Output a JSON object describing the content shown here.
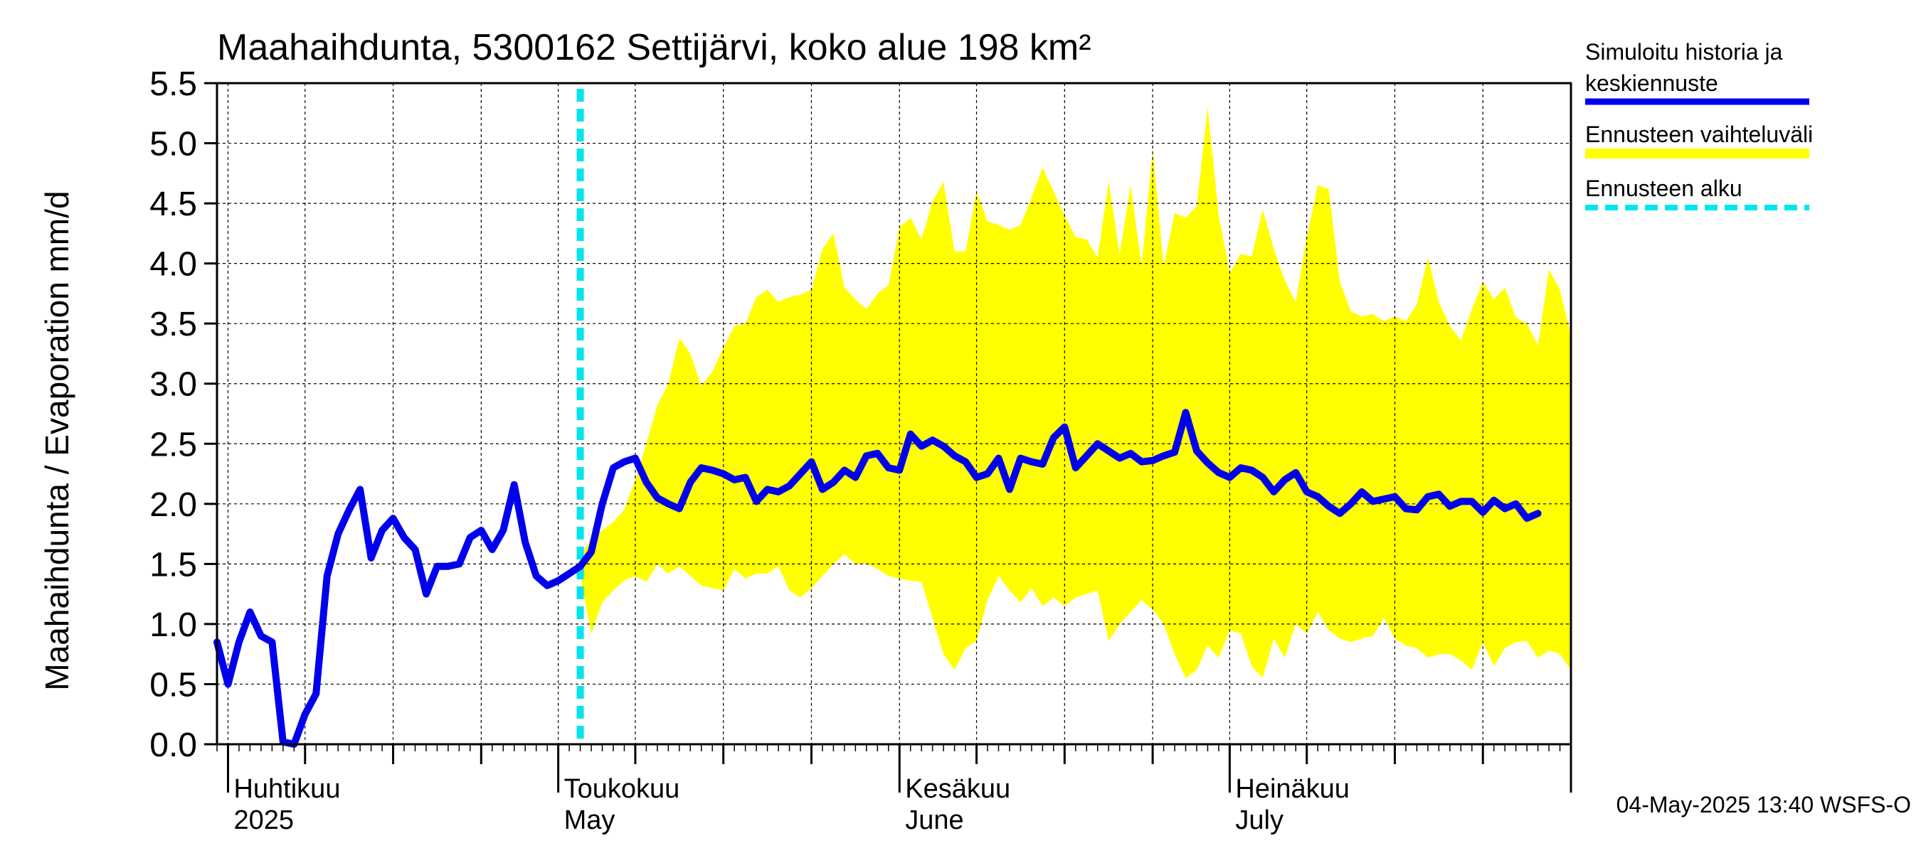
{
  "chart_data": {
    "type": "line",
    "title": "Maahaihdunta, 5300162 Settijärvi, koko alue 198 km²",
    "ylabel": "Maahaihdunta / Evaporation   mm/d",
    "ylim": [
      0,
      5.5
    ],
    "yticks": [
      "0.0",
      "0.5",
      "1.0",
      "1.5",
      "2.0",
      "2.5",
      "3.0",
      "3.5",
      "4.0",
      "4.5",
      "5.0",
      "5.5"
    ],
    "x_start": "2025-03-31",
    "x_end": "2025-08-01",
    "grid": true,
    "legend_position": "right",
    "month_labels": [
      {
        "date": "2025-04-01",
        "fi": "Huhtikuu",
        "en": "2025"
      },
      {
        "date": "2025-05-01",
        "fi": "Toukokuu",
        "en": "May"
      },
      {
        "date": "2025-06-01",
        "fi": "Kesäkuu",
        "en": "June"
      },
      {
        "date": "2025-07-01",
        "fi": "Heinäkuu",
        "en": "July"
      }
    ],
    "forecast_start": "2025-05-03",
    "series": [
      {
        "name": "Simuloitu historia ja keskiennuste",
        "color": "#0000ee",
        "start": "2025-03-31",
        "values": [
          0.85,
          0.5,
          0.85,
          1.1,
          0.9,
          0.85,
          0.02,
          0.0,
          0.25,
          0.42,
          1.4,
          1.75,
          1.95,
          2.12,
          1.55,
          1.78,
          1.88,
          1.72,
          1.62,
          1.25,
          1.48,
          1.48,
          1.5,
          1.72,
          1.78,
          1.62,
          1.78,
          2.16,
          1.68,
          1.4,
          1.32,
          1.36,
          1.42,
          1.48,
          1.6,
          2.0,
          2.3,
          2.35,
          2.38,
          2.18,
          2.05,
          2.0,
          1.96,
          2.18,
          2.3,
          2.28,
          2.25,
          2.2,
          2.22,
          2.02,
          2.12,
          2.1,
          2.15,
          2.25,
          2.35,
          2.12,
          2.18,
          2.28,
          2.22,
          2.4,
          2.42,
          2.3,
          2.28,
          2.58,
          2.48,
          2.53,
          2.48,
          2.4,
          2.35,
          2.22,
          2.25,
          2.38,
          2.12,
          2.38,
          2.35,
          2.33,
          2.55,
          2.64,
          2.3,
          2.4,
          2.5,
          2.44,
          2.38,
          2.42,
          2.35,
          2.36,
          2.4,
          2.43,
          2.76,
          2.44,
          2.34,
          2.26,
          2.22,
          2.3,
          2.28,
          2.22,
          2.1,
          2.2,
          2.26,
          2.1,
          2.06,
          1.98,
          1.92,
          2.0,
          2.1,
          2.02,
          2.04,
          2.06,
          1.96,
          1.95,
          2.06,
          2.08,
          1.98,
          2.02,
          2.02,
          1.93,
          2.03,
          1.96,
          2.0,
          1.88,
          1.92
        ]
      },
      {
        "name": "Ennusteen vaihteluväli",
        "color": "#ffff00",
        "start": "2025-05-03",
        "upper": [
          1.55,
          1.72,
          1.78,
          1.85,
          1.95,
          2.2,
          2.5,
          2.82,
          3.0,
          3.38,
          3.25,
          2.98,
          3.1,
          3.3,
          3.48,
          3.5,
          3.72,
          3.78,
          3.68,
          3.72,
          3.74,
          3.78,
          4.12,
          4.25,
          3.8,
          3.7,
          3.62,
          3.75,
          3.82,
          4.3,
          4.38,
          4.2,
          4.52,
          4.68,
          4.1,
          4.1,
          4.6,
          4.35,
          4.32,
          4.28,
          4.32,
          4.55,
          4.8,
          4.6,
          4.4,
          4.22,
          4.2,
          4.05,
          4.68,
          4.08,
          4.65,
          3.98,
          4.95,
          3.98,
          4.42,
          4.38,
          4.48,
          5.3,
          4.4,
          3.92,
          4.08,
          4.06,
          4.45,
          4.12,
          3.86,
          3.68,
          4.22,
          4.65,
          4.62,
          3.85,
          3.6,
          3.56,
          3.58,
          3.52,
          3.56,
          3.52,
          3.66,
          4.05,
          3.68,
          3.48,
          3.36,
          3.62,
          3.85,
          3.7,
          3.8,
          3.55,
          3.5,
          3.32,
          3.95,
          3.78,
          3.4
        ],
        "lower": [
          1.4,
          0.92,
          1.18,
          1.28,
          1.36,
          1.4,
          1.35,
          1.5,
          1.42,
          1.48,
          1.4,
          1.32,
          1.3,
          1.28,
          1.46,
          1.38,
          1.42,
          1.42,
          1.48,
          1.28,
          1.22,
          1.3,
          1.4,
          1.5,
          1.58,
          1.5,
          1.5,
          1.46,
          1.4,
          1.38,
          1.36,
          1.35,
          1.05,
          0.75,
          0.62,
          0.8,
          0.86,
          1.2,
          1.4,
          1.28,
          1.18,
          1.3,
          1.15,
          1.22,
          1.15,
          1.22,
          1.25,
          1.28,
          0.86,
          1.0,
          1.1,
          1.2,
          1.12,
          1.0,
          0.75,
          0.55,
          0.62,
          0.82,
          0.72,
          0.95,
          0.92,
          0.65,
          0.55,
          0.88,
          0.72,
          1.0,
          0.92,
          1.1,
          0.95,
          0.88,
          0.85,
          0.88,
          0.9,
          1.05,
          0.88,
          0.82,
          0.8,
          0.72,
          0.75,
          0.75,
          0.7,
          0.62,
          0.85,
          0.65,
          0.8,
          0.85,
          0.86,
          0.72,
          0.78,
          0.75,
          0.62
        ]
      },
      {
        "name": "Ennusteen alku",
        "color": "#00e5ee"
      }
    ]
  },
  "legend": {
    "items": [
      {
        "line1": "Simuloitu historia ja",
        "line2": "keskiennuste",
        "color": "#0000ee"
      },
      {
        "line1": "Ennusteen vaihteluväli",
        "color": "#ffff00"
      },
      {
        "line1": "Ennusteen alku",
        "color": "#00e5ee"
      }
    ]
  },
  "footer": {
    "timestamp": "04-May-2025 13:40 WSFS-O"
  }
}
